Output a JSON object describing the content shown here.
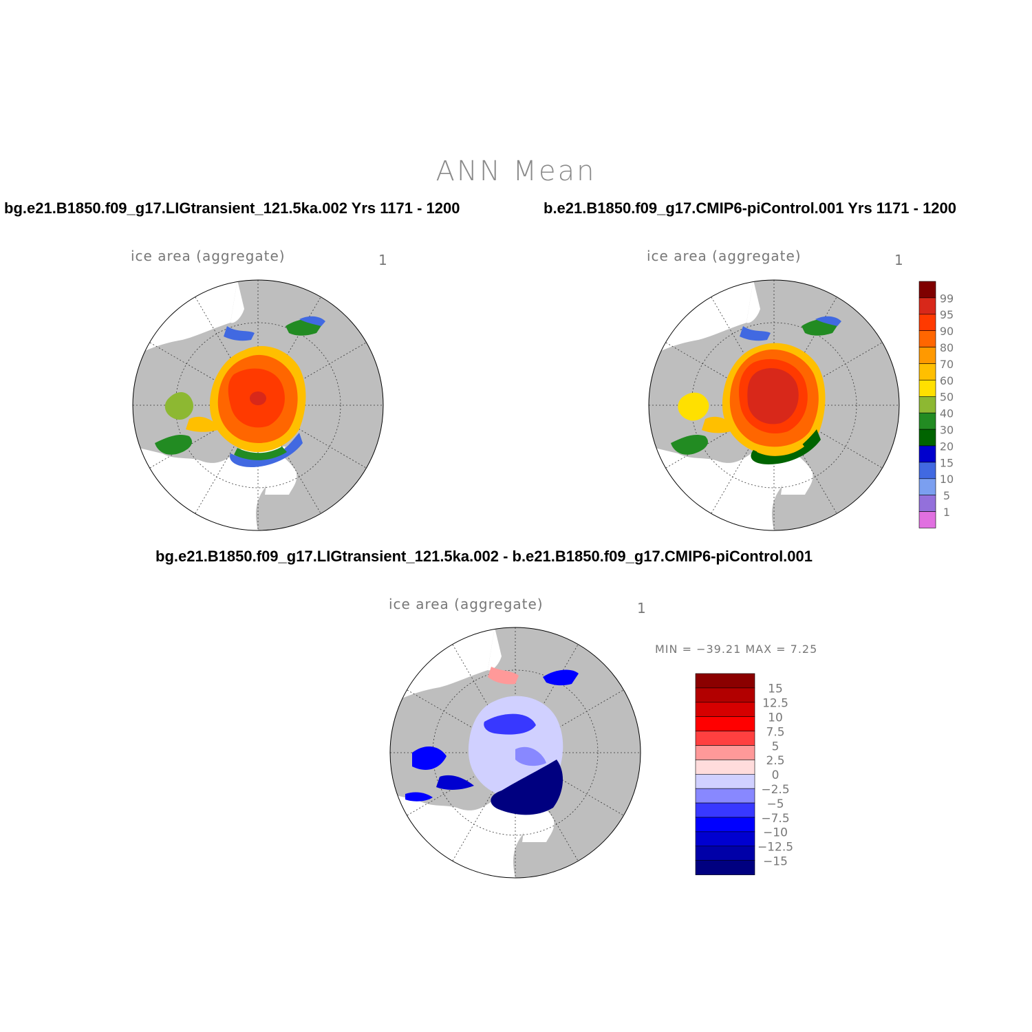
{
  "title": "ANN Mean",
  "panels": {
    "case_a": "bg.e21.B1850.f09_g17.LIGtransient_121.5ka.002  Yrs 1171 - 1200",
    "case_b": "b.e21.B1850.f09_g17.CMIP6-piControl.001  Yrs 1171 - 1200",
    "diff": "bg.e21.B1850.f09_g17.LIGtransient_121.5ka.002 - b.e21.B1850.f09_g17.CMIP6-piControl.001"
  },
  "variable": {
    "label": "ice area   (aggregate)",
    "units": "1"
  },
  "diff_stats": {
    "text": "MIN = −39.21 MAX =    7.25"
  },
  "colorbars": {
    "abs": {
      "labels": [
        "99",
        "95",
        "90",
        "80",
        "70",
        "60",
        "50",
        "40",
        "30",
        "20",
        "15",
        "10",
        "5",
        "1"
      ],
      "colors": [
        "#7f0000",
        "#d8281a",
        "#ff3a00",
        "#ff6600",
        "#ff9900",
        "#ffbf00",
        "#ffe000",
        "#8db832",
        "#228b22",
        "#006400",
        "#0000cd",
        "#4169e1",
        "#7b9ff0",
        "#9370db",
        "#e070e0"
      ]
    },
    "diff": {
      "labels": [
        "15",
        "12.5",
        "10",
        "7.5",
        "5",
        "2.5",
        "0",
        "−2.5",
        "−5",
        "−7.5",
        "−10",
        "−12.5",
        "−15"
      ],
      "colors": [
        "#8b0000",
        "#b20000",
        "#d60000",
        "#ff0000",
        "#ff4040",
        "#ff9999",
        "#ffdcdc",
        "#d0d0ff",
        "#8888ff",
        "#3838ff",
        "#0000ff",
        "#0000d0",
        "#0000a8",
        "#000080"
      ]
    }
  }
}
